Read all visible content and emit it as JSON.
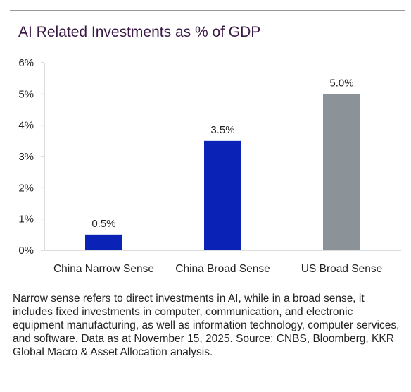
{
  "colors": {
    "title": "#3a1846",
    "china_bars": "#0a22b5",
    "us_bar": "#8b9399",
    "axis": "#b8b8b8",
    "text": "#222222"
  },
  "chart_data": {
    "type": "bar",
    "title": "AI Related Investments as % of GDP",
    "xlabel": "",
    "ylabel": "",
    "categories": [
      "China Narrow Sense",
      "China Broad Sense",
      "US Broad Sense"
    ],
    "values": [
      0.5,
      3.5,
      5.0
    ],
    "value_labels": [
      "0.5%",
      "3.5%",
      "5.0%"
    ],
    "bar_colors": [
      "#0a22b5",
      "#0a22b5",
      "#8b9399"
    ],
    "ylim": [
      0,
      6
    ],
    "yticks": [
      0,
      1,
      2,
      3,
      4,
      5,
      6
    ],
    "ytick_labels": [
      "0%",
      "1%",
      "2%",
      "3%",
      "4%",
      "5%",
      "6%"
    ],
    "grid": false,
    "legend": "none"
  },
  "footnote": "Narrow sense refers to direct investments in AI, while in a broad sense, it includes fixed investments in computer, communication, and electronic equipment manufacturing, as well as information technology, computer services, and software. Data as at November 15, 2025. Source: CNBS, Bloomberg, KKR Global Macro & Asset Allocation analysis."
}
